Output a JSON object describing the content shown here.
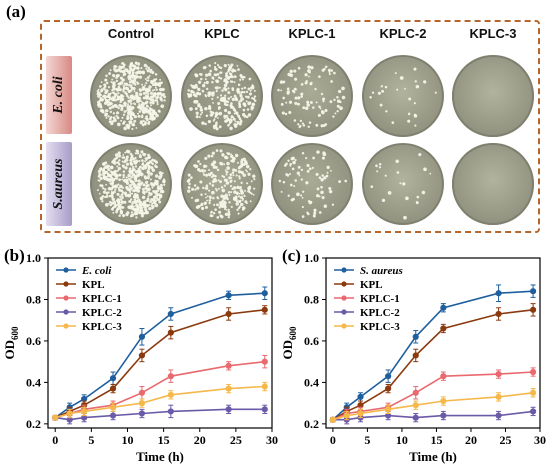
{
  "panel_labels": {
    "a": "(a)",
    "b": "(b)",
    "c": "(c)"
  },
  "photo_panel": {
    "columns": [
      "Control",
      "KPLC",
      "KPLC-1",
      "KPLC-2",
      "KPLC-3"
    ],
    "rows": [
      "E. coli",
      "S.aureus"
    ],
    "colony_density": [
      [
        1.0,
        0.55,
        0.18,
        0.05,
        0.0
      ],
      [
        1.0,
        0.5,
        0.15,
        0.04,
        0.0
      ]
    ]
  },
  "chart_data": [
    {
      "type": "line",
      "title": "",
      "xlabel": "Time (h)",
      "ylabel_base": "OD",
      "ylabel_sub": "600",
      "xlim": [
        -1,
        30
      ],
      "ylim": [
        0.18,
        1.0
      ],
      "xticks": [
        0,
        5,
        10,
        15,
        20,
        25,
        30
      ],
      "yticks": [
        0.2,
        0.4,
        0.6,
        0.8,
        1.0
      ],
      "ytick_labels": [
        "0.2",
        "0.4",
        "0.6",
        "0.8",
        "1.0"
      ],
      "legend_position": "top-left",
      "x": [
        0,
        2,
        4,
        8,
        12,
        16,
        24,
        29
      ],
      "series": [
        {
          "name": "E. coli",
          "italic": true,
          "color": "#1f5f9e",
          "marker": "circle",
          "values": [
            0.23,
            0.28,
            0.32,
            0.42,
            0.62,
            0.73,
            0.82,
            0.83
          ],
          "errors": [
            0.01,
            0.02,
            0.02,
            0.03,
            0.04,
            0.03,
            0.02,
            0.03
          ]
        },
        {
          "name": "KPL",
          "italic": false,
          "color": "#8b3a0e",
          "marker": "circle",
          "values": [
            0.23,
            0.26,
            0.29,
            0.37,
            0.53,
            0.64,
            0.73,
            0.75
          ],
          "errors": [
            0.01,
            0.02,
            0.02,
            0.02,
            0.03,
            0.03,
            0.03,
            0.02
          ]
        },
        {
          "name": "KPLC-1",
          "italic": false,
          "color": "#e8696e",
          "marker": "circle",
          "values": [
            0.23,
            0.25,
            0.27,
            0.29,
            0.35,
            0.43,
            0.48,
            0.5
          ],
          "errors": [
            0.01,
            0.02,
            0.02,
            0.02,
            0.03,
            0.03,
            0.02,
            0.03
          ]
        },
        {
          "name": "KPLC-2",
          "italic": false,
          "color": "#6a5aa8",
          "marker": "circle",
          "values": [
            0.23,
            0.22,
            0.23,
            0.24,
            0.25,
            0.26,
            0.27,
            0.27
          ],
          "errors": [
            0.01,
            0.02,
            0.02,
            0.02,
            0.02,
            0.03,
            0.02,
            0.02
          ]
        },
        {
          "name": "KPLC-3",
          "italic": false,
          "color": "#f5b84a",
          "marker": "circle",
          "values": [
            0.23,
            0.25,
            0.26,
            0.28,
            0.3,
            0.34,
            0.37,
            0.38
          ],
          "errors": [
            0.01,
            0.02,
            0.02,
            0.02,
            0.02,
            0.02,
            0.02,
            0.02
          ]
        }
      ]
    },
    {
      "type": "line",
      "title": "",
      "xlabel": "Time (h)",
      "ylabel_base": "OD",
      "ylabel_sub": "600",
      "xlim": [
        -1,
        30
      ],
      "ylim": [
        0.18,
        1.0
      ],
      "xticks": [
        0,
        5,
        10,
        15,
        20,
        25,
        30
      ],
      "yticks": [
        0.2,
        0.4,
        0.6,
        0.8,
        1.0
      ],
      "ytick_labels": [
        "0.2",
        "0.4",
        "0.6",
        "0.8",
        "1.0"
      ],
      "legend_position": "top-left",
      "x": [
        0,
        2,
        4,
        8,
        12,
        16,
        24,
        29
      ],
      "series": [
        {
          "name": "S. aureus",
          "italic": true,
          "color": "#1f5f9e",
          "marker": "circle",
          "values": [
            0.22,
            0.28,
            0.33,
            0.43,
            0.62,
            0.76,
            0.83,
            0.84
          ],
          "errors": [
            0.01,
            0.02,
            0.02,
            0.03,
            0.03,
            0.02,
            0.04,
            0.03
          ]
        },
        {
          "name": "KPL",
          "italic": false,
          "color": "#8b3a0e",
          "marker": "circle",
          "values": [
            0.22,
            0.26,
            0.29,
            0.37,
            0.53,
            0.66,
            0.73,
            0.75
          ],
          "errors": [
            0.01,
            0.02,
            0.02,
            0.02,
            0.03,
            0.02,
            0.03,
            0.03
          ]
        },
        {
          "name": "KPLC-1",
          "italic": false,
          "color": "#e8696e",
          "marker": "circle",
          "values": [
            0.22,
            0.25,
            0.26,
            0.28,
            0.35,
            0.43,
            0.44,
            0.45
          ],
          "errors": [
            0.01,
            0.02,
            0.02,
            0.02,
            0.03,
            0.02,
            0.02,
            0.02
          ]
        },
        {
          "name": "KPLC-2",
          "italic": false,
          "color": "#6a5aa8",
          "marker": "circle",
          "values": [
            0.22,
            0.22,
            0.23,
            0.24,
            0.23,
            0.24,
            0.24,
            0.26
          ],
          "errors": [
            0.01,
            0.02,
            0.02,
            0.02,
            0.02,
            0.02,
            0.02,
            0.02
          ]
        },
        {
          "name": "KPLC-3",
          "italic": false,
          "color": "#f5b84a",
          "marker": "circle",
          "values": [
            0.22,
            0.24,
            0.25,
            0.27,
            0.29,
            0.31,
            0.33,
            0.35
          ],
          "errors": [
            0.01,
            0.02,
            0.02,
            0.02,
            0.02,
            0.02,
            0.02,
            0.02
          ]
        }
      ]
    }
  ]
}
